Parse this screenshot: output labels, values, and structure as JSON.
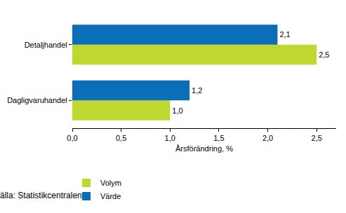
{
  "chart_data": {
    "type": "bar",
    "orientation": "horizontal",
    "categories": [
      "Detaljhandel",
      "Dagligvaruhandel"
    ],
    "series": [
      {
        "name": "Volym",
        "color": "#bfd730",
        "values": [
          2.5,
          1.0
        ],
        "value_labels": [
          "2,5",
          "1,0"
        ]
      },
      {
        "name": "Värde",
        "color": "#0a6fb7",
        "values": [
          2.1,
          1.2
        ],
        "value_labels": [
          "2,1",
          "1,2"
        ]
      }
    ],
    "xlabel": "Årsförändring, %",
    "xlim": [
      0,
      2.7
    ],
    "xticks": [
      {
        "value": 0,
        "label": "0,0"
      },
      {
        "value": 0.5,
        "label": "0,5"
      },
      {
        "value": 1,
        "label": "1,0"
      },
      {
        "value": 1.5,
        "label": "1,5"
      },
      {
        "value": 2,
        "label": "2,0"
      },
      {
        "value": 2.5,
        "label": "2,5"
      }
    ],
    "grid": false,
    "legend": "bottom left",
    "data_labels": true,
    "source": "Källa: Statistikcentralen"
  }
}
